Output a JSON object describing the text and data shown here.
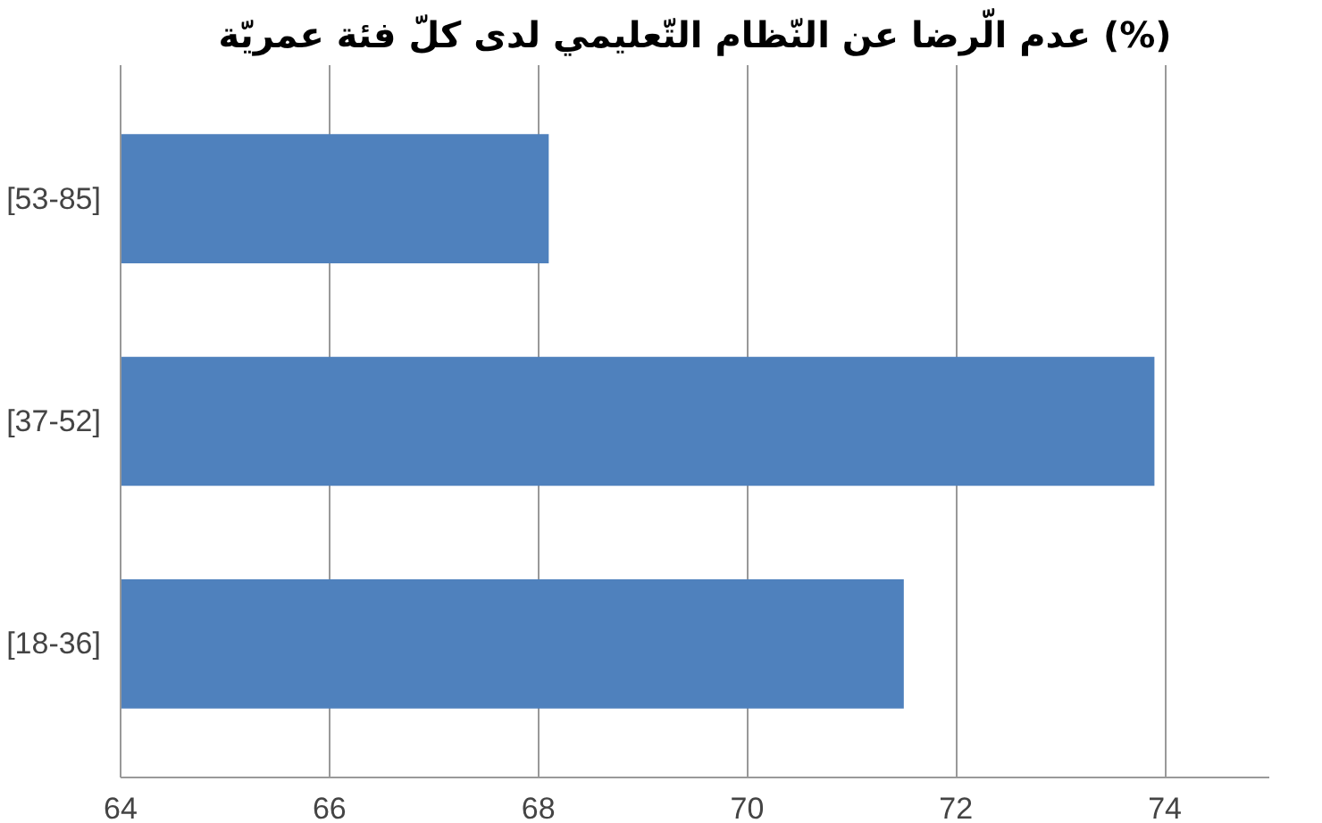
{
  "chart_data": {
    "type": "bar",
    "orientation": "horizontal",
    "title": "عدم الّرضا عن النّظام التّعليمي لدى كلّ فئة عمريّة (%)",
    "categories": [
      "[53-85]",
      "[37-52]",
      "[18-36]"
    ],
    "values": [
      68.1,
      73.9,
      71.5
    ],
    "color": "#4f81bd",
    "xlim": [
      64,
      75
    ],
    "xticks": [
      64,
      66,
      68,
      70,
      72,
      74
    ],
    "grid": "x"
  }
}
